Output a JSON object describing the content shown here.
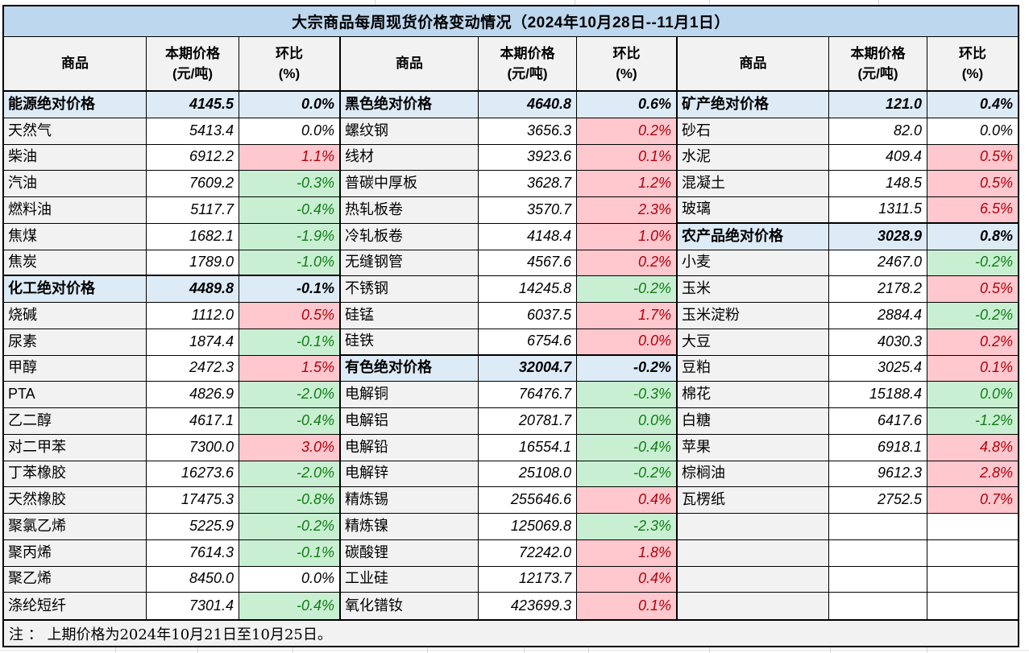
{
  "title": "大宗商品每周现货价格变动情况（2024年10月28日--11月1日）",
  "note": "注 ： 上期价格为2024年10月21日至10月25日。",
  "columns": {
    "commodity": "商品",
    "price1": "本期价格",
    "price2": "(元/吨)",
    "pct1": "环比",
    "pct2": "(%)"
  },
  "colors": {
    "title_bg": "#BDD7EE",
    "section_bg": "#DDEBF7",
    "label_bg": "#F2F2F2",
    "up_bg": "#FFC7CE",
    "up_text": "#B00009",
    "down_bg": "#C9EFD3",
    "down_text": "#0E7D12",
    "border": "#000000",
    "footer_bg": "#F2F2F2",
    "gridline": "#D8D8D8"
  },
  "rows": [
    {
      "cells": [
        {
          "kind": "section",
          "commodity": "能源绝对价格",
          "price": "4145.5",
          "pct": "0.0%"
        },
        {
          "kind": "section",
          "commodity": "黑色绝对价格",
          "price": "4640.8",
          "pct": "0.6%"
        },
        {
          "kind": "section",
          "commodity": "矿产绝对价格",
          "price": "121.0",
          "pct": "0.4%"
        }
      ]
    },
    {
      "cells": [
        {
          "kind": "item",
          "trend": "flat",
          "commodity": "天然气",
          "price": "5413.4",
          "pct": "0.0%"
        },
        {
          "kind": "item",
          "trend": "up",
          "commodity": "螺纹钢",
          "price": "3656.3",
          "pct": "0.2%"
        },
        {
          "kind": "item",
          "trend": "flat",
          "commodity": "砂石",
          "price": "82.0",
          "pct": "0.0%"
        }
      ]
    },
    {
      "cells": [
        {
          "kind": "item",
          "trend": "up",
          "commodity": "柴油",
          "price": "6912.2",
          "pct": "1.1%"
        },
        {
          "kind": "item",
          "trend": "up",
          "commodity": "线材",
          "price": "3923.6",
          "pct": "0.1%"
        },
        {
          "kind": "item",
          "trend": "up",
          "commodity": "水泥",
          "price": "409.4",
          "pct": "0.5%"
        }
      ]
    },
    {
      "cells": [
        {
          "kind": "item",
          "trend": "down",
          "commodity": "汽油",
          "price": "7609.2",
          "pct": "-0.3%"
        },
        {
          "kind": "item",
          "trend": "up",
          "commodity": "普碳中厚板",
          "price": "3628.7",
          "pct": "1.2%"
        },
        {
          "kind": "item",
          "trend": "up",
          "commodity": "混凝土",
          "price": "148.5",
          "pct": "0.5%"
        }
      ]
    },
    {
      "cells": [
        {
          "kind": "item",
          "trend": "down",
          "commodity": "燃料油",
          "price": "5117.7",
          "pct": "-0.4%"
        },
        {
          "kind": "item",
          "trend": "up",
          "commodity": "热轧板卷",
          "price": "3570.7",
          "pct": "2.3%"
        },
        {
          "kind": "item",
          "trend": "up",
          "commodity": "玻璃",
          "price": "1311.5",
          "pct": "6.5%"
        }
      ]
    },
    {
      "cells": [
        {
          "kind": "item",
          "trend": "down",
          "commodity": "焦煤",
          "price": "1682.1",
          "pct": "-1.9%"
        },
        {
          "kind": "item",
          "trend": "up",
          "commodity": "冷轧板卷",
          "price": "4148.4",
          "pct": "1.0%"
        },
        {
          "kind": "section",
          "commodity": "农产品绝对价格",
          "price": "3028.9",
          "pct": "0.8%"
        }
      ]
    },
    {
      "cells": [
        {
          "kind": "item",
          "trend": "down",
          "commodity": "焦炭",
          "price": "1789.0",
          "pct": "-1.0%"
        },
        {
          "kind": "item",
          "trend": "up",
          "commodity": "无缝钢管",
          "price": "4567.6",
          "pct": "0.2%"
        },
        {
          "kind": "item",
          "trend": "down",
          "commodity": "小麦",
          "price": "2467.0",
          "pct": "-0.2%"
        }
      ]
    },
    {
      "cells": [
        {
          "kind": "section",
          "commodity": "化工绝对价格",
          "price": "4489.8",
          "pct": "-0.1%"
        },
        {
          "kind": "item",
          "trend": "down",
          "commodity": "不锈钢",
          "price": "14245.8",
          "pct": "-0.2%"
        },
        {
          "kind": "item",
          "trend": "up",
          "commodity": "玉米",
          "price": "2178.2",
          "pct": "0.5%"
        }
      ]
    },
    {
      "cells": [
        {
          "kind": "item",
          "trend": "up",
          "commodity": "烧碱",
          "price": "1112.0",
          "pct": "0.5%"
        },
        {
          "kind": "item",
          "trend": "up",
          "commodity": "硅锰",
          "price": "6037.5",
          "pct": "1.7%"
        },
        {
          "kind": "item",
          "trend": "down",
          "commodity": "玉米淀粉",
          "price": "2884.4",
          "pct": "-0.2%"
        }
      ]
    },
    {
      "cells": [
        {
          "kind": "item",
          "trend": "down",
          "commodity": "尿素",
          "price": "1874.4",
          "pct": "-0.1%"
        },
        {
          "kind": "item",
          "trend": "up",
          "commodity": "硅铁",
          "price": "6754.6",
          "pct": "0.0%"
        },
        {
          "kind": "item",
          "trend": "up",
          "commodity": "大豆",
          "price": "4030.3",
          "pct": "0.2%"
        }
      ]
    },
    {
      "cells": [
        {
          "kind": "item",
          "trend": "up",
          "commodity": "甲醇",
          "price": "2472.3",
          "pct": "1.5%"
        },
        {
          "kind": "section",
          "commodity": "有色绝对价格",
          "price": "32004.7",
          "pct": "-0.2%"
        },
        {
          "kind": "item",
          "trend": "up",
          "commodity": "豆粕",
          "price": "3025.4",
          "pct": "0.1%"
        }
      ]
    },
    {
      "cells": [
        {
          "kind": "item",
          "trend": "down",
          "commodity": "PTA",
          "price": "4826.9",
          "pct": "-2.0%"
        },
        {
          "kind": "item",
          "trend": "down",
          "commodity": "电解铜",
          "price": "76476.7",
          "pct": "-0.3%"
        },
        {
          "kind": "item",
          "trend": "down",
          "commodity": "棉花",
          "price": "15188.4",
          "pct": "0.0%"
        }
      ]
    },
    {
      "cells": [
        {
          "kind": "item",
          "trend": "down",
          "commodity": "乙二醇",
          "price": "4617.1",
          "pct": "-0.4%"
        },
        {
          "kind": "item",
          "trend": "down",
          "commodity": "电解铝",
          "price": "20781.7",
          "pct": "0.0%"
        },
        {
          "kind": "item",
          "trend": "down",
          "commodity": "白糖",
          "price": "6417.6",
          "pct": "-1.2%"
        }
      ]
    },
    {
      "cells": [
        {
          "kind": "item",
          "trend": "up",
          "commodity": "对二甲苯",
          "price": "7300.0",
          "pct": "3.0%"
        },
        {
          "kind": "item",
          "trend": "down",
          "commodity": "电解铅",
          "price": "16554.1",
          "pct": "-0.4%"
        },
        {
          "kind": "item",
          "trend": "up",
          "commodity": "苹果",
          "price": "6918.1",
          "pct": "4.8%"
        }
      ]
    },
    {
      "cells": [
        {
          "kind": "item",
          "trend": "down",
          "commodity": "丁苯橡胶",
          "price": "16273.6",
          "pct": "-2.0%"
        },
        {
          "kind": "item",
          "trend": "down",
          "commodity": "电解锌",
          "price": "25108.0",
          "pct": "-0.2%"
        },
        {
          "kind": "item",
          "trend": "up",
          "commodity": "棕榈油",
          "price": "9612.3",
          "pct": "2.8%"
        }
      ]
    },
    {
      "cells": [
        {
          "kind": "item",
          "trend": "down",
          "commodity": "天然橡胶",
          "price": "17475.3",
          "pct": "-0.8%"
        },
        {
          "kind": "item",
          "trend": "up",
          "commodity": "精炼锡",
          "price": "255646.6",
          "pct": "0.4%"
        },
        {
          "kind": "item",
          "trend": "up",
          "commodity": "瓦楞纸",
          "price": "2752.5",
          "pct": "0.7%"
        }
      ]
    },
    {
      "cells": [
        {
          "kind": "item",
          "trend": "down",
          "commodity": "聚氯乙烯",
          "price": "5225.9",
          "pct": "-0.2%"
        },
        {
          "kind": "item",
          "trend": "down",
          "commodity": "精炼镍",
          "price": "125069.8",
          "pct": "-2.3%"
        },
        {
          "kind": "empty",
          "commodity": "",
          "price": "",
          "pct": ""
        }
      ]
    },
    {
      "cells": [
        {
          "kind": "item",
          "trend": "down",
          "commodity": "聚丙烯",
          "price": "7614.3",
          "pct": "-0.1%"
        },
        {
          "kind": "item",
          "trend": "up",
          "commodity": "碳酸锂",
          "price": "72242.0",
          "pct": "1.8%"
        },
        {
          "kind": "empty",
          "commodity": "",
          "price": "",
          "pct": ""
        }
      ]
    },
    {
      "cells": [
        {
          "kind": "item",
          "trend": "flat",
          "commodity": "聚乙烯",
          "price": "8450.0",
          "pct": "0.0%"
        },
        {
          "kind": "item",
          "trend": "up",
          "commodity": "工业硅",
          "price": "12173.7",
          "pct": "0.4%"
        },
        {
          "kind": "empty",
          "commodity": "",
          "price": "",
          "pct": ""
        }
      ]
    },
    {
      "cells": [
        {
          "kind": "item",
          "trend": "down",
          "commodity": "涤纶短纤",
          "price": "7301.4",
          "pct": "-0.4%"
        },
        {
          "kind": "item",
          "trend": "up",
          "commodity": "氧化镨钕",
          "price": "423699.3",
          "pct": "0.1%"
        },
        {
          "kind": "empty",
          "commodity": "",
          "price": "",
          "pct": ""
        }
      ]
    }
  ]
}
